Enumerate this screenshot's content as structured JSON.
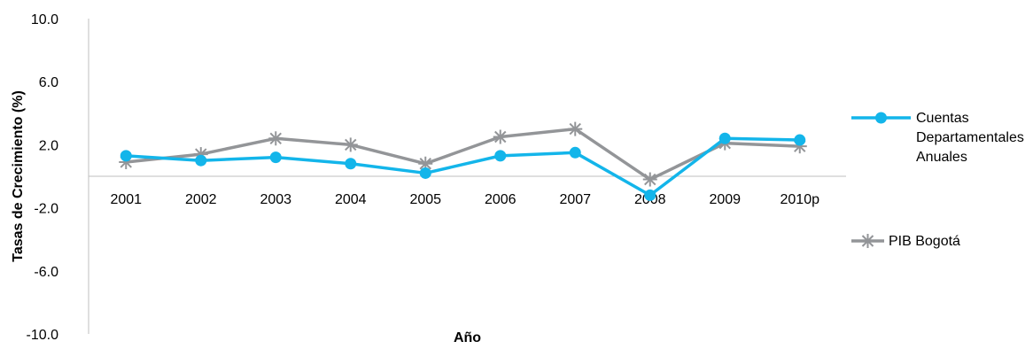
{
  "chart_data": {
    "type": "line",
    "categories": [
      "2001",
      "2002",
      "2003",
      "2004",
      "2005",
      "2006",
      "2007",
      "2008",
      "2009",
      "2010p"
    ],
    "series": [
      {
        "name": "Cuentas Departamentales Anuales",
        "legend_lines": [
          "Cuentas",
          "Departamentales",
          "Anuales"
        ],
        "color": "#13b5ea",
        "marker": "circle",
        "values": [
          1.3,
          1.0,
          1.2,
          0.8,
          0.2,
          1.3,
          1.5,
          -1.2,
          2.4,
          2.3
        ]
      },
      {
        "name": "PIB Bogotá",
        "legend_lines": [
          "PIB Bogotá"
        ],
        "color": "#939598",
        "marker": "star",
        "values": [
          0.9,
          1.4,
          2.4,
          2.0,
          0.8,
          2.5,
          3.0,
          -0.2,
          2.1,
          1.9
        ]
      }
    ],
    "ytick_labels": [
      "10.0",
      "6.0",
      "2.0",
      "-2.0",
      "-6.0",
      "-10.0"
    ],
    "yticks": [
      10,
      6,
      2,
      -2,
      -6,
      -10
    ],
    "ylim": [
      -10,
      10
    ],
    "xlabel": "Año",
    "ylabel": "Tasas de Crecimiento (%)",
    "grid": false,
    "legend_position": "right"
  }
}
